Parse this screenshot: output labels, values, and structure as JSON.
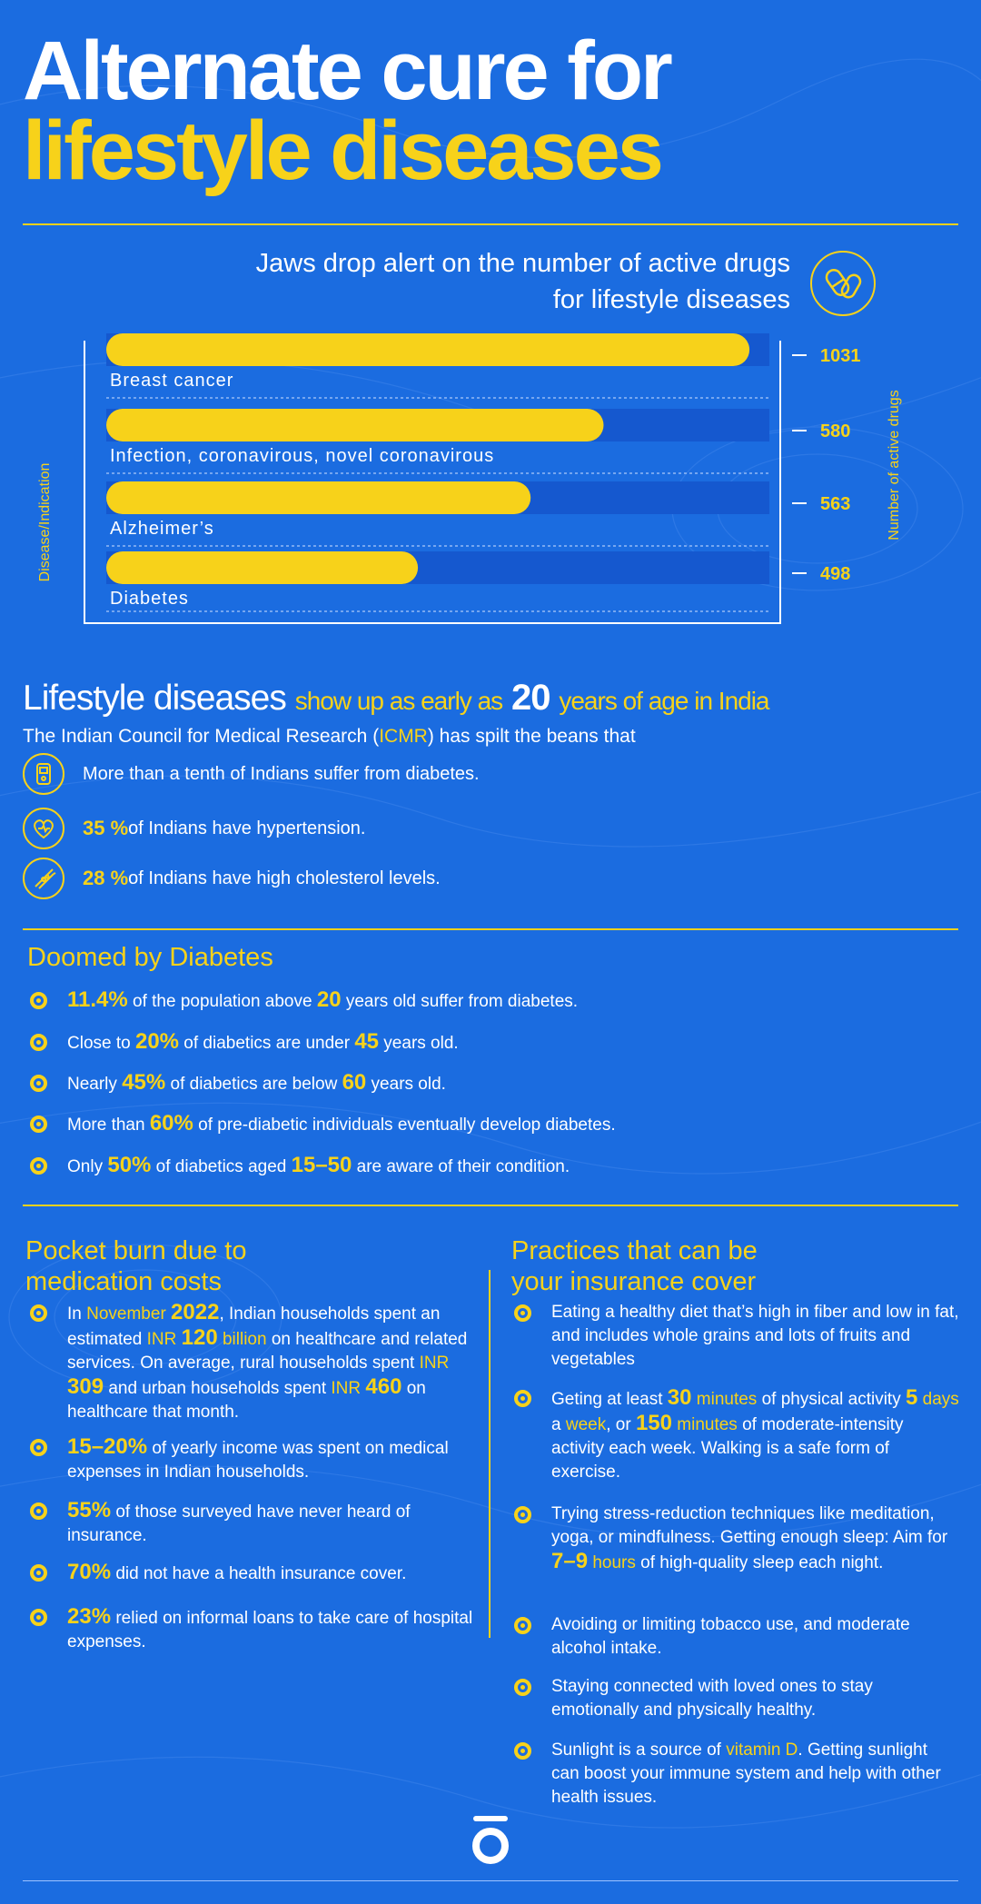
{
  "title": {
    "line1": "Alternate cure for",
    "line2": "lifestyle diseases"
  },
  "chart_data": {
    "type": "bar",
    "orientation": "horizontal",
    "title": "Jaws drop alert on the number of active drugs for lifestyle diseases",
    "title_line1": "Jaws drop alert on the number of active drugs",
    "title_line2": "for lifestyle diseases",
    "ylabel_left": "Disease/Indication",
    "ylabel_right": "Number of active drugs",
    "categories": [
      "Breast cancer",
      "Infection, coronavirous, novel coronavirous",
      "Alzheimer’s",
      "Diabetes"
    ],
    "values": [
      1031,
      580,
      563,
      498
    ],
    "value_labels": [
      "1031",
      "580",
      "563",
      "498"
    ],
    "fill_fraction": [
      0.97,
      0.75,
      0.64,
      0.47
    ],
    "colors": {
      "bar": "#f7d21a",
      "track": "#1558cf"
    }
  },
  "lifestyle": {
    "head_big": "Lifestyle diseases",
    "head_mid1": "show up as early as",
    "head_num": "20",
    "head_mid2": "years of age in India",
    "sub_pre": "The Indian Council for Medical Research (",
    "sub_hl": "ICMR",
    "sub_post": ") has spilt the beans that",
    "items": [
      {
        "icon": "glucometer-icon",
        "pct": "",
        "text": "More than a tenth of Indians suffer from diabetes."
      },
      {
        "icon": "heart-pulse-icon",
        "pct": "35 %",
        "text": " of Indians have hypertension."
      },
      {
        "icon": "artery-icon",
        "pct": "28 %",
        "text": " of Indians have high cholesterol levels."
      }
    ]
  },
  "diabetes": {
    "heading": "Doomed by Diabetes",
    "items": [
      {
        "parts": [
          [
            "b",
            "11.4%"
          ],
          [
            "t",
            " of the population above "
          ],
          [
            "b",
            "20"
          ],
          [
            "t",
            " years old suffer from diabetes."
          ]
        ]
      },
      {
        "parts": [
          [
            "t",
            "Close to "
          ],
          [
            "b",
            "20%"
          ],
          [
            "t",
            " of diabetics are under "
          ],
          [
            "b",
            "45"
          ],
          [
            "t",
            " years old."
          ]
        ]
      },
      {
        "parts": [
          [
            "t",
            "Nearly "
          ],
          [
            "b",
            "45%"
          ],
          [
            "t",
            " of diabetics are below "
          ],
          [
            "b",
            "60"
          ],
          [
            "t",
            " years old."
          ]
        ]
      },
      {
        "parts": [
          [
            "t",
            "More than "
          ],
          [
            "b",
            "60%"
          ],
          [
            "t",
            " of pre-diabetic individuals eventually develop diabetes."
          ]
        ]
      },
      {
        "parts": [
          [
            "t",
            "Only "
          ],
          [
            "b",
            "50%"
          ],
          [
            "t",
            " of diabetics aged "
          ],
          [
            "b",
            "15–50"
          ],
          [
            "t",
            " are aware of their condition."
          ]
        ]
      }
    ]
  },
  "pocket": {
    "heading1": "Pocket burn due to",
    "heading2": "medication costs",
    "items": [
      {
        "parts": [
          [
            "t",
            "In "
          ],
          [
            "y",
            "November "
          ],
          [
            "b",
            "2022"
          ],
          [
            "t",
            ", Indian households spent an estimated "
          ],
          [
            "y",
            "INR "
          ],
          [
            "b",
            "120"
          ],
          [
            "y",
            " billion"
          ],
          [
            "t",
            " on healthcare and related services. On average, rural households spent "
          ],
          [
            "y",
            "INR "
          ],
          [
            "b",
            "309"
          ],
          [
            "t",
            " and urban households spent "
          ],
          [
            "y",
            "INR "
          ],
          [
            "b",
            "460"
          ],
          [
            "t",
            " on healthcare that month."
          ]
        ]
      },
      {
        "parts": [
          [
            "b",
            "15–20%"
          ],
          [
            "t",
            " of yearly income was spent on medical expenses in Indian households."
          ]
        ]
      },
      {
        "parts": [
          [
            "b",
            "55%"
          ],
          [
            "t",
            " of those surveyed have never heard of insurance."
          ]
        ]
      },
      {
        "parts": [
          [
            "b",
            "70%"
          ],
          [
            "t",
            " did not have a health insurance cover."
          ]
        ]
      },
      {
        "parts": [
          [
            "b",
            "23%"
          ],
          [
            "t",
            " relied on informal loans to take care of hospital expenses."
          ]
        ]
      }
    ]
  },
  "practices": {
    "heading1": "Practices that can be",
    "heading2": "your insurance cover",
    "items": [
      {
        "parts": [
          [
            "t",
            "Eating a healthy diet that’s high in fiber and low in fat, and includes whole grains and lots of fruits and vegetables"
          ]
        ]
      },
      {
        "parts": [
          [
            "t",
            "Geting at least "
          ],
          [
            "b",
            "30"
          ],
          [
            "y",
            " minutes"
          ],
          [
            "t",
            " of physical activity "
          ],
          [
            "b",
            "5"
          ],
          [
            "y",
            " days"
          ],
          [
            "t",
            " a "
          ],
          [
            "y",
            "week"
          ],
          [
            "t",
            ", or "
          ],
          [
            "b",
            "150"
          ],
          [
            "y",
            " minutes"
          ],
          [
            "t",
            " of moderate-intensity activity each week. Walking is a safe form of exercise."
          ]
        ]
      },
      {
        "parts": [
          [
            "t",
            "Trying stress-reduction techniques like meditation, yoga, or mindfulness. Getting enough sleep: Aim for "
          ],
          [
            "b",
            "7–9"
          ],
          [
            "y",
            " hours"
          ],
          [
            "t",
            " of high-quality sleep each night."
          ]
        ]
      },
      {
        "parts": [
          [
            "t",
            "Avoiding or limiting tobacco use, and moderate alcohol intake."
          ]
        ]
      },
      {
        "parts": [
          [
            "t",
            "Staying connected with loved ones to stay emotionally and physically healthy."
          ]
        ]
      },
      {
        "parts": [
          [
            "t",
            "Sunlight is a source of "
          ],
          [
            "y",
            "vitamin D"
          ],
          [
            "t",
            ". Getting sunlight can boost your immune system and help with other health issues."
          ]
        ]
      }
    ]
  }
}
